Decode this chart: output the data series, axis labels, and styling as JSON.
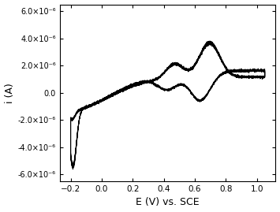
{
  "xlabel": "E (V) vs. SCE",
  "ylabel": "i (A)",
  "xlim": [
    -0.27,
    1.12
  ],
  "ylim": [
    -6.5e-06,
    6.5e-06
  ],
  "xticks": [
    -0.2,
    0.0,
    0.2,
    0.4,
    0.6,
    0.8,
    1.0
  ],
  "yticks": [
    -6e-06,
    -4e-06,
    -2e-06,
    0.0,
    2e-06,
    4e-06,
    6e-06
  ],
  "ytick_labels": [
    "-6.0×10⁻⁶",
    "-4.0×10⁻⁶",
    "-2.0×10⁻⁶",
    "0.0",
    "2.0×10⁻⁶",
    "4.0×10⁻⁶",
    "6.0×10⁻⁶"
  ],
  "line_color": "#000000",
  "background_color": "#ffffff",
  "fig_background": "#ffffff"
}
